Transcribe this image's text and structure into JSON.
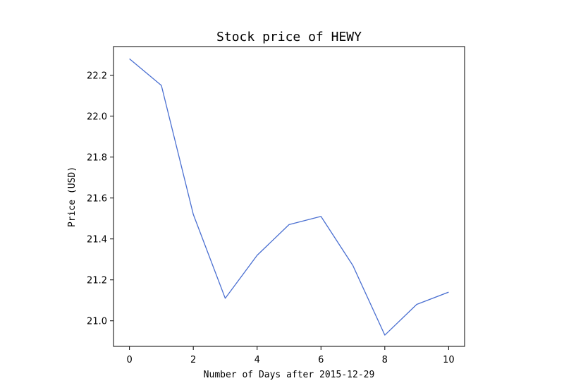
{
  "chart_data": {
    "type": "line",
    "title": "Stock price of HEWY",
    "xlabel": "Number of Days after 2015-12-29",
    "ylabel": "Price (USD)",
    "x": [
      0,
      1,
      2,
      3,
      4,
      5,
      6,
      7,
      8,
      9,
      10
    ],
    "series": [
      {
        "values": [
          22.28,
          22.15,
          21.52,
          21.11,
          21.32,
          21.47,
          21.51,
          21.27,
          20.93,
          21.08,
          21.14
        ],
        "color": "#4a6fd1"
      }
    ],
    "xlim": [
      -0.5,
      10.5
    ],
    "ylim": [
      20.875,
      22.34
    ],
    "x_ticks": [
      0,
      2,
      4,
      6,
      8,
      10
    ],
    "x_tick_labels": [
      "0",
      "2",
      "4",
      "6",
      "8",
      "10"
    ],
    "y_ticks": [
      21.0,
      21.2,
      21.4,
      21.6,
      21.8,
      22.0,
      22.2
    ],
    "y_tick_labels": [
      "21.0",
      "21.2",
      "21.4",
      "21.6",
      "21.8",
      "22.0",
      "22.2"
    ],
    "grid": false,
    "legend": "none"
  }
}
